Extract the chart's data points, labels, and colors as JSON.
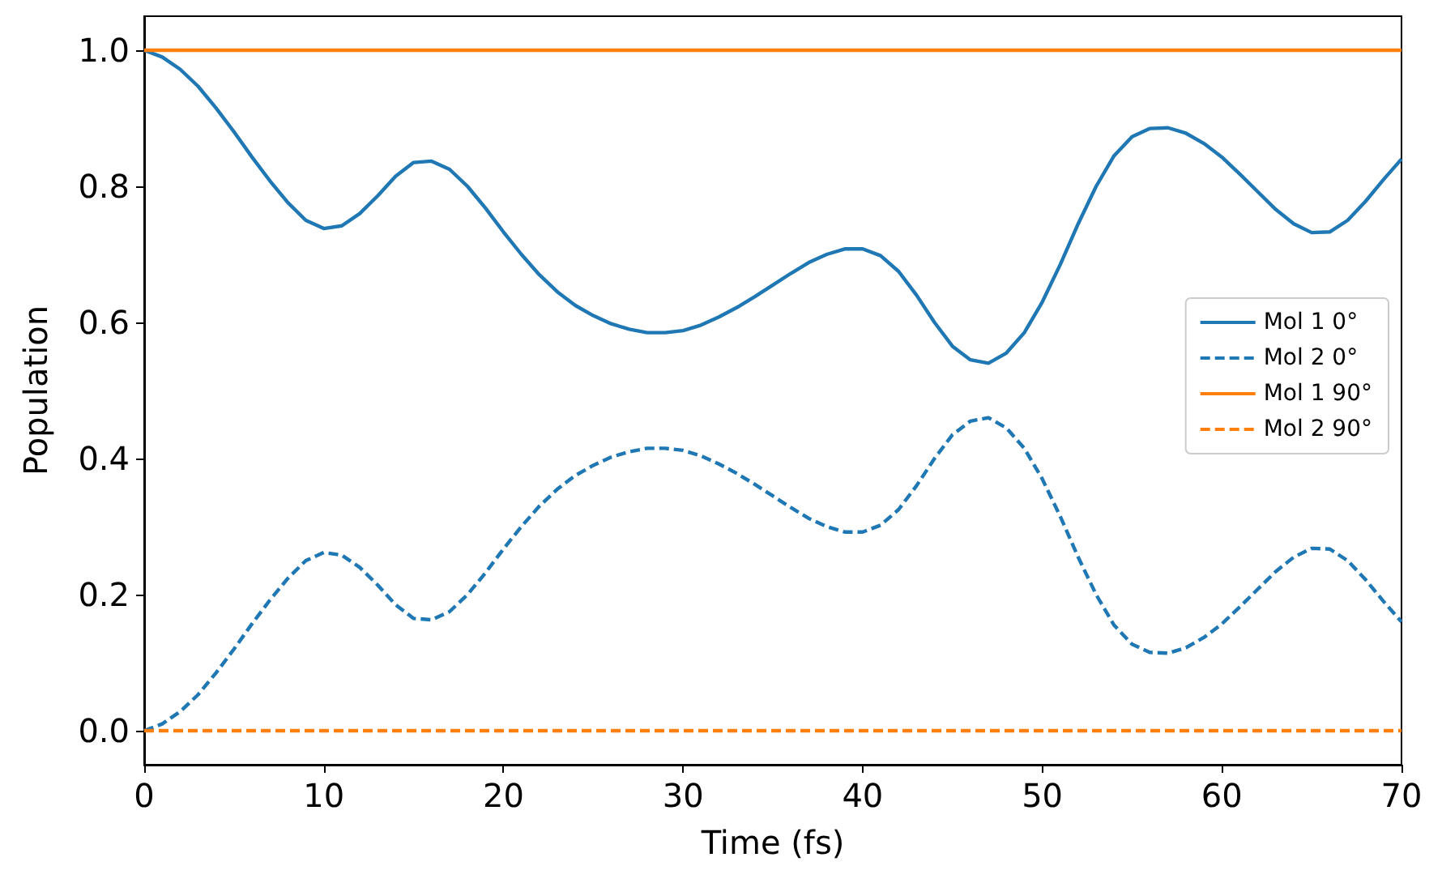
{
  "chart_data": {
    "type": "line",
    "xlabel": "Time (fs)",
    "ylabel": "Population",
    "x": [
      0,
      1,
      2,
      3,
      4,
      5,
      6,
      7,
      8,
      9,
      10,
      11,
      12,
      13,
      14,
      15,
      16,
      17,
      18,
      19,
      20,
      21,
      22,
      23,
      24,
      25,
      26,
      27,
      28,
      29,
      30,
      31,
      32,
      33,
      34,
      35,
      36,
      37,
      38,
      39,
      40,
      41,
      42,
      43,
      44,
      45,
      46,
      47,
      48,
      49,
      50,
      51,
      52,
      53,
      54,
      55,
      56,
      57,
      58,
      59,
      60,
      61,
      62,
      63,
      64,
      65,
      66,
      67,
      68,
      69,
      70
    ],
    "series": [
      {
        "name": "Mol 1 0°",
        "color": "#1f77b4",
        "line_style": "solid",
        "values": [
          1.0,
          0.99,
          0.972,
          0.947,
          0.915,
          0.88,
          0.843,
          0.808,
          0.776,
          0.75,
          0.738,
          0.742,
          0.76,
          0.786,
          0.815,
          0.835,
          0.837,
          0.825,
          0.8,
          0.768,
          0.733,
          0.7,
          0.67,
          0.645,
          0.625,
          0.61,
          0.598,
          0.59,
          0.585,
          0.585,
          0.588,
          0.596,
          0.608,
          0.622,
          0.638,
          0.655,
          0.672,
          0.688,
          0.7,
          0.708,
          0.708,
          0.698,
          0.675,
          0.64,
          0.6,
          0.565,
          0.545,
          0.54,
          0.555,
          0.585,
          0.63,
          0.685,
          0.745,
          0.8,
          0.845,
          0.873,
          0.885,
          0.886,
          0.878,
          0.863,
          0.843,
          0.818,
          0.792,
          0.766,
          0.745,
          0.732,
          0.733,
          0.75,
          0.778,
          0.81,
          0.84
        ]
      },
      {
        "name": "Mol 2 0°",
        "color": "#1f77b4",
        "line_style": "dashed",
        "values": [
          0,
          0.01,
          0.028,
          0.053,
          0.085,
          0.12,
          0.157,
          0.192,
          0.224,
          0.25,
          0.262,
          0.258,
          0.24,
          0.214,
          0.185,
          0.165,
          0.163,
          0.175,
          0.2,
          0.232,
          0.267,
          0.3,
          0.33,
          0.355,
          0.375,
          0.39,
          0.402,
          0.41,
          0.415,
          0.415,
          0.412,
          0.404,
          0.392,
          0.378,
          0.362,
          0.345,
          0.328,
          0.312,
          0.3,
          0.292,
          0.292,
          0.302,
          0.325,
          0.36,
          0.4,
          0.435,
          0.455,
          0.46,
          0.445,
          0.415,
          0.37,
          0.315,
          0.255,
          0.2,
          0.155,
          0.127,
          0.115,
          0.114,
          0.122,
          0.137,
          0.157,
          0.182,
          0.208,
          0.234,
          0.255,
          0.268,
          0.267,
          0.25,
          0.222,
          0.19,
          0.16
        ]
      },
      {
        "name": "Mol 1 90°",
        "color": "#ff7f0e",
        "line_style": "solid",
        "values": [
          1,
          1,
          1,
          1,
          1,
          1,
          1,
          1,
          1,
          1,
          1,
          1,
          1,
          1,
          1,
          1,
          1,
          1,
          1,
          1,
          1,
          1,
          1,
          1,
          1,
          1,
          1,
          1,
          1,
          1,
          1,
          1,
          1,
          1,
          1,
          1,
          1,
          1,
          1,
          1,
          1,
          1,
          1,
          1,
          1,
          1,
          1,
          1,
          1,
          1,
          1,
          1,
          1,
          1,
          1,
          1,
          1,
          1,
          1,
          1,
          1,
          1,
          1,
          1,
          1,
          1,
          1,
          1,
          1,
          1,
          1
        ]
      },
      {
        "name": "Mol 2 90°",
        "color": "#ff7f0e",
        "line_style": "dashed",
        "values": [
          0,
          0,
          0,
          0,
          0,
          0,
          0,
          0,
          0,
          0,
          0,
          0,
          0,
          0,
          0,
          0,
          0,
          0,
          0,
          0,
          0,
          0,
          0,
          0,
          0,
          0,
          0,
          0,
          0,
          0,
          0,
          0,
          0,
          0,
          0,
          0,
          0,
          0,
          0,
          0,
          0,
          0,
          0,
          0,
          0,
          0,
          0,
          0,
          0,
          0,
          0,
          0,
          0,
          0,
          0,
          0,
          0,
          0,
          0,
          0,
          0,
          0,
          0,
          0,
          0,
          0,
          0,
          0,
          0,
          0,
          0
        ]
      }
    ],
    "xlim": [
      0,
      70
    ],
    "xticks": [
      0,
      10,
      20,
      30,
      40,
      50,
      60,
      70
    ],
    "ylim": [
      -0.05,
      1.05
    ],
    "yticks": [
      {
        "value": 0,
        "label": "0.0"
      },
      {
        "value": 0.2,
        "label": "0.2"
      },
      {
        "value": 0.4,
        "label": "0.4"
      },
      {
        "value": 0.6,
        "label": "0.6"
      },
      {
        "value": 0.8,
        "label": "0.8"
      },
      {
        "value": 1,
        "label": "1.0"
      }
    ],
    "legend": "right",
    "grid": false,
    "marker": "none"
  }
}
